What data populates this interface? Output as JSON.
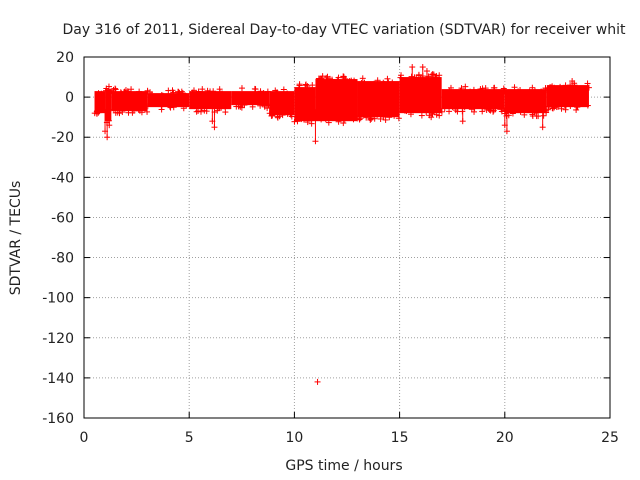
{
  "chart_data": {
    "type": "scatter",
    "title": "Day 316 of 2011, Sidereal Day-to-day VTEC variation (SDTVAR) for receiver whit",
    "xlabel": "GPS time / hours",
    "ylabel": "SDTVAR / TECUs",
    "xlim": [
      0,
      25
    ],
    "ylim": [
      -160,
      20
    ],
    "xticks": [
      0,
      5,
      10,
      15,
      20,
      25
    ],
    "yticks": [
      20,
      0,
      -20,
      -40,
      -60,
      -80,
      -100,
      -120,
      -140,
      -160
    ],
    "grid": true,
    "series": [
      {
        "name": "SDTVAR",
        "color": "#ff0000",
        "marker": "plus",
        "band_segments": [
          {
            "x_start": 0.5,
            "x_end": 1.0,
            "y_min": -8,
            "y_max": 3
          },
          {
            "x_start": 1.0,
            "x_end": 1.3,
            "y_min": -12,
            "y_max": 4
          },
          {
            "x_start": 1.3,
            "x_end": 3.0,
            "y_min": -7,
            "y_max": 3
          },
          {
            "x_start": 3.0,
            "x_end": 5.0,
            "y_min": -5,
            "y_max": 2
          },
          {
            "x_start": 5.0,
            "x_end": 7.0,
            "y_min": -6,
            "y_max": 3
          },
          {
            "x_start": 7.0,
            "x_end": 8.8,
            "y_min": -4,
            "y_max": 3
          },
          {
            "x_start": 8.8,
            "x_end": 10.0,
            "y_min": -9,
            "y_max": 3
          },
          {
            "x_start": 10.0,
            "x_end": 11.0,
            "y_min": -12,
            "y_max": 5
          },
          {
            "x_start": 11.0,
            "x_end": 13.0,
            "y_min": -12,
            "y_max": 9
          },
          {
            "x_start": 13.0,
            "x_end": 15.0,
            "y_min": -10,
            "y_max": 8
          },
          {
            "x_start": 15.0,
            "x_end": 17.0,
            "y_min": -8,
            "y_max": 10
          },
          {
            "x_start": 17.0,
            "x_end": 20.0,
            "y_min": -6,
            "y_max": 4
          },
          {
            "x_start": 20.0,
            "x_end": 22.0,
            "y_min": -8,
            "y_max": 4
          },
          {
            "x_start": 22.0,
            "x_end": 24.0,
            "y_min": -5,
            "y_max": 6
          }
        ],
        "outliers": [
          {
            "x": 1.1,
            "y": -20
          },
          {
            "x": 1.0,
            "y": -17
          },
          {
            "x": 1.2,
            "y": -14
          },
          {
            "x": 6.2,
            "y": -15
          },
          {
            "x": 6.1,
            "y": -12
          },
          {
            "x": 11.0,
            "y": -22
          },
          {
            "x": 11.1,
            "y": -142
          },
          {
            "x": 15.6,
            "y": 15
          },
          {
            "x": 16.1,
            "y": 15
          },
          {
            "x": 16.3,
            "y": 13
          },
          {
            "x": 16.5,
            "y": -10
          },
          {
            "x": 18.0,
            "y": -12
          },
          {
            "x": 20.1,
            "y": -17
          },
          {
            "x": 20.0,
            "y": -14
          },
          {
            "x": 21.8,
            "y": -15
          },
          {
            "x": 21.7,
            "y": -6
          },
          {
            "x": 23.2,
            "y": 8
          }
        ]
      }
    ]
  }
}
